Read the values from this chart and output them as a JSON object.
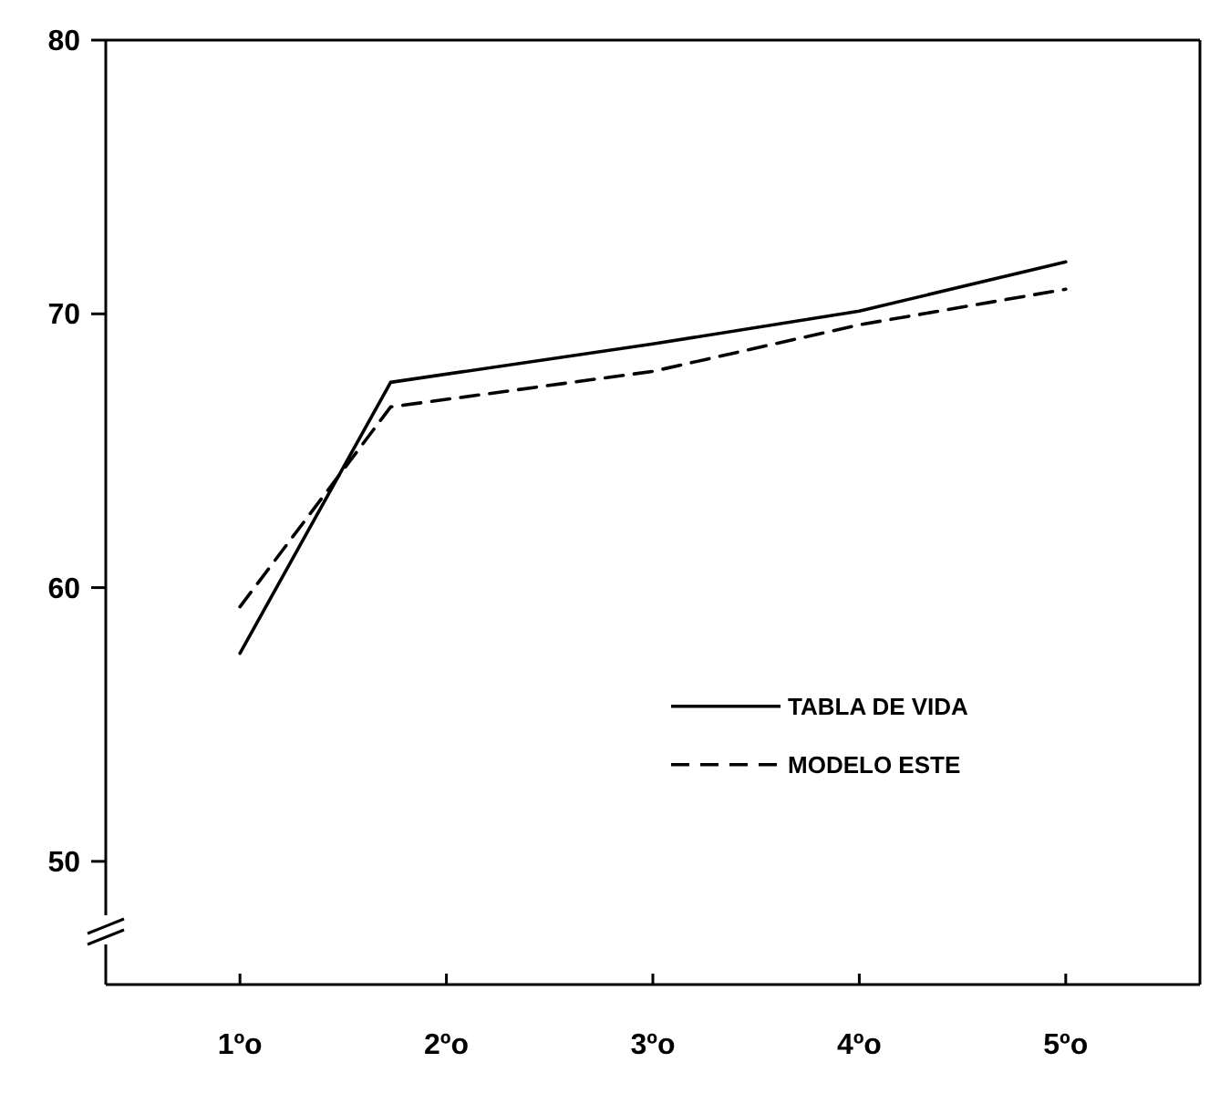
{
  "chart_data": {
    "type": "line",
    "x": [
      1,
      1.73,
      3,
      4,
      5
    ],
    "series": [
      {
        "name": "TABLA DE VIDA",
        "color": "#000000",
        "line_style": "solid",
        "values": [
          57.6,
          67.5,
          68.9,
          70.1,
          71.9
        ]
      },
      {
        "name": "MODELO ESTE",
        "color": "#000000",
        "line_style": "dashed",
        "values": [
          59.3,
          66.6,
          67.9,
          69.6,
          70.9
        ]
      }
    ],
    "xlim": [
      0.35,
      5.65
    ],
    "xticks": [
      {
        "value": 1,
        "label": "1ºo"
      },
      {
        "value": 2,
        "label": "2ºo"
      },
      {
        "value": 3,
        "label": "3ºo"
      },
      {
        "value": 4,
        "label": "4ºo"
      },
      {
        "value": 5,
        "label": "5ºo"
      }
    ],
    "ylim": [
      45.5,
      80
    ],
    "yticks": [
      50,
      60,
      70,
      80
    ],
    "grid": false,
    "legend": "bottom right",
    "marker": "none"
  }
}
